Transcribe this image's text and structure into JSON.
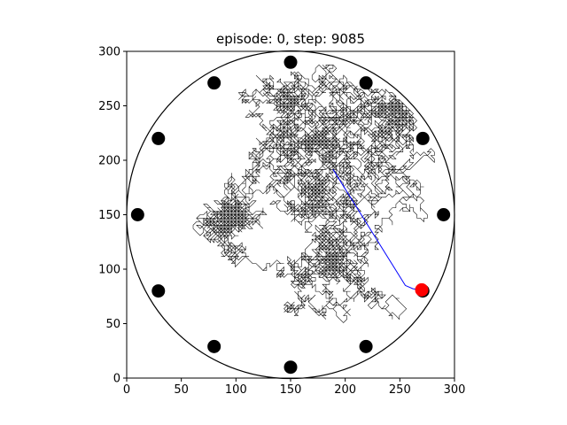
{
  "chart_data": {
    "type": "scatter",
    "title": "episode: 0, step: 9085",
    "xlabel": "",
    "ylabel": "",
    "xlim": [
      0,
      300
    ],
    "ylim": [
      0,
      300
    ],
    "xticks": [
      0,
      50,
      100,
      150,
      200,
      250,
      300
    ],
    "yticks": [
      0,
      50,
      100,
      150,
      200,
      250,
      300
    ],
    "grid": false,
    "arena": {
      "center": [
        150,
        150
      ],
      "radius": 150
    },
    "obstacles": [
      {
        "x": 150,
        "y": 290
      },
      {
        "x": 219,
        "y": 271
      },
      {
        "x": 271,
        "y": 220
      },
      {
        "x": 290,
        "y": 150
      },
      {
        "x": 271,
        "y": 80
      },
      {
        "x": 219,
        "y": 29
      },
      {
        "x": 150,
        "y": 10
      },
      {
        "x": 80,
        "y": 29
      },
      {
        "x": 29,
        "y": 80
      },
      {
        "x": 10,
        "y": 150
      },
      {
        "x": 29,
        "y": 220
      },
      {
        "x": 80,
        "y": 271
      }
    ],
    "agent": {
      "x": 270,
      "y": 81
    },
    "trajectory": {
      "steps": 9085,
      "start": [
        270,
        80
      ]
    },
    "colors": {
      "obstacle": "#000000",
      "agent": "#ff0000",
      "trajectory": "#000000",
      "trajectory_tail": "#0000ff",
      "arena": "#000000"
    }
  }
}
